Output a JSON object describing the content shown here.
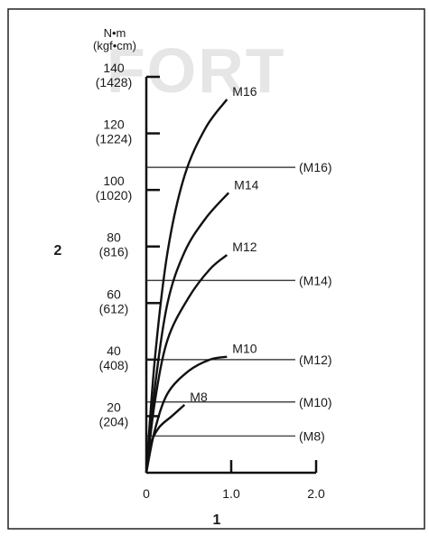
{
  "watermark": "FORT",
  "chart_data": {
    "type": "line",
    "y_unit": "N•m",
    "y_unit_alt": "(kgf•cm)",
    "y_axis_marker": "2",
    "x_axis_marker": "1",
    "xlim": [
      0,
      2.0
    ],
    "ylim": [
      0,
      140
    ],
    "x_ticks": [
      {
        "value": 0,
        "label": "0"
      },
      {
        "value": 1.0,
        "label": "1.0"
      },
      {
        "value": 2.0,
        "label": "2.0"
      }
    ],
    "y_ticks": [
      {
        "value": 20,
        "label": "20",
        "alt": "(204)"
      },
      {
        "value": 40,
        "label": "40",
        "alt": "(408)"
      },
      {
        "value": 60,
        "label": "60",
        "alt": "(612)"
      },
      {
        "value": 80,
        "label": "80",
        "alt": "(816)"
      },
      {
        "value": 100,
        "label": "100",
        "alt": "(1020)"
      },
      {
        "value": 120,
        "label": "120",
        "alt": "(1224)"
      },
      {
        "value": 140,
        "label": "140",
        "alt": "(1428)"
      }
    ],
    "series": [
      {
        "name": "M16",
        "x": [
          0,
          0.1,
          0.25,
          0.45,
          0.7,
          0.95
        ],
        "y": [
          0,
          40,
          78,
          105,
          122,
          132
        ]
      },
      {
        "name": "M14",
        "x": [
          0,
          0.1,
          0.25,
          0.45,
          0.7,
          0.97
        ],
        "y": [
          0,
          30,
          60,
          78,
          90,
          99
        ]
      },
      {
        "name": "M12",
        "x": [
          0,
          0.1,
          0.25,
          0.5,
          0.75,
          0.95
        ],
        "y": [
          0,
          25,
          47,
          62,
          72,
          77
        ]
      },
      {
        "name": "M10",
        "x": [
          0,
          0.1,
          0.25,
          0.5,
          0.75,
          0.95
        ],
        "y": [
          0,
          15,
          28,
          36,
          40,
          41
        ]
      },
      {
        "name": "M8",
        "x": [
          0,
          0.05,
          0.15,
          0.3,
          0.45
        ],
        "y": [
          0,
          10,
          16,
          20,
          24
        ]
      }
    ],
    "reference_lines": [
      {
        "name": "(M16)",
        "y": 108
      },
      {
        "name": "(M14)",
        "y": 68
      },
      {
        "name": "(M12)",
        "y": 40
      },
      {
        "name": "(M10)",
        "y": 25
      },
      {
        "name": "(M8)",
        "y": 13
      }
    ]
  }
}
